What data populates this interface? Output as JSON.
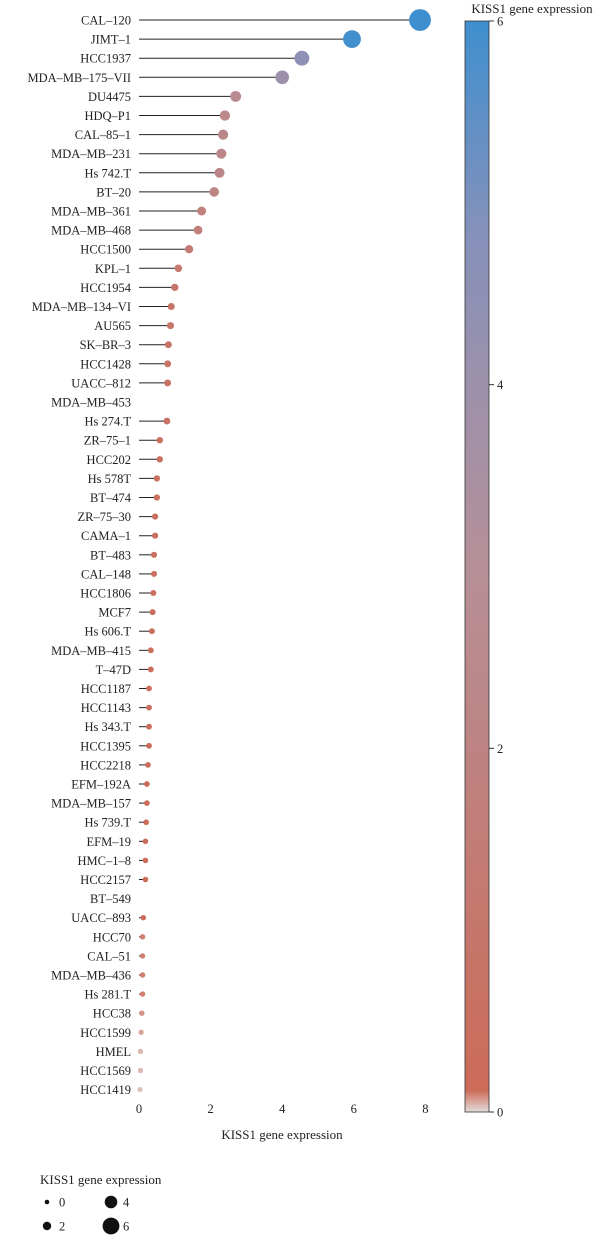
{
  "chart_data": {
    "type": "lollipop",
    "xlabel": "KISS1 gene expression",
    "xlim": [
      0,
      8
    ],
    "xticks": [
      0,
      2,
      4,
      6,
      8
    ],
    "categories": [
      "CAL-120",
      "JIMT-1",
      "HCC1937",
      "MDA-MB-175-VII",
      "DU4475",
      "HDQ-P1",
      "CAL-85-1",
      "MDA-MB-231",
      "Hs 742.T",
      "BT-20",
      "MDA-MB-361",
      "MDA-MB-468",
      "HCC1500",
      "KPL-1",
      "HCC1954",
      "MDA-MB-134-VI",
      "AU565",
      "SK-BR-3",
      "HCC1428",
      "UACC-812",
      "MDA-MB-453",
      "Hs 274.T",
      "ZR-75-1",
      "HCC202",
      "Hs 578T",
      "BT-474",
      "ZR-75-30",
      "CAMA-1",
      "BT-483",
      "CAL-148",
      "HCC1806",
      "MCF7",
      "Hs 606.T",
      "MDA-MB-415",
      "T-47D",
      "HCC1187",
      "HCC1143",
      "Hs 343.T",
      "HCC1395",
      "HCC2218",
      "EFM-192A",
      "MDA-MB-157",
      "Hs 739.T",
      "EFM-19",
      "HMC-1-8",
      "HCC2157",
      "BT-549",
      "UACC-893",
      "HCC70",
      "CAL-51",
      "MDA-MB-436",
      "Hs 281.T",
      "HCC38",
      "HCC1599",
      "HMEL",
      "HCC1569",
      "HCC1419"
    ],
    "values": [
      7.85,
      5.95,
      4.55,
      4.0,
      2.7,
      2.4,
      2.35,
      2.3,
      2.25,
      2.1,
      1.75,
      1.65,
      1.4,
      1.1,
      1.0,
      0.9,
      0.88,
      0.82,
      0.8,
      0.8,
      null,
      0.78,
      0.58,
      0.58,
      0.5,
      0.5,
      0.45,
      0.45,
      0.42,
      0.42,
      0.4,
      0.38,
      0.36,
      0.33,
      0.33,
      0.28,
      0.28,
      0.28,
      0.28,
      0.25,
      0.22,
      0.22,
      0.2,
      0.18,
      0.18,
      0.18,
      null,
      0.12,
      0.1,
      0.1,
      0.1,
      0.1,
      0.08,
      0.06,
      0.04,
      0.04,
      0.03
    ],
    "colorbar": {
      "title": "KISS1 gene expression",
      "range": [
        0,
        6
      ],
      "ticks": [
        0,
        2,
        4,
        6
      ],
      "colors": [
        "#e4dcdc",
        "#cc6b58",
        "#b69098",
        "#8791ba",
        "#3f8fcf"
      ]
    },
    "size_legend": {
      "title": "KISS1 gene expression",
      "entries": [
        {
          "label": "0",
          "value": 0
        },
        {
          "label": "2",
          "value": 2
        },
        {
          "label": "4",
          "value": 4
        },
        {
          "label": "6",
          "value": 6
        }
      ]
    }
  }
}
